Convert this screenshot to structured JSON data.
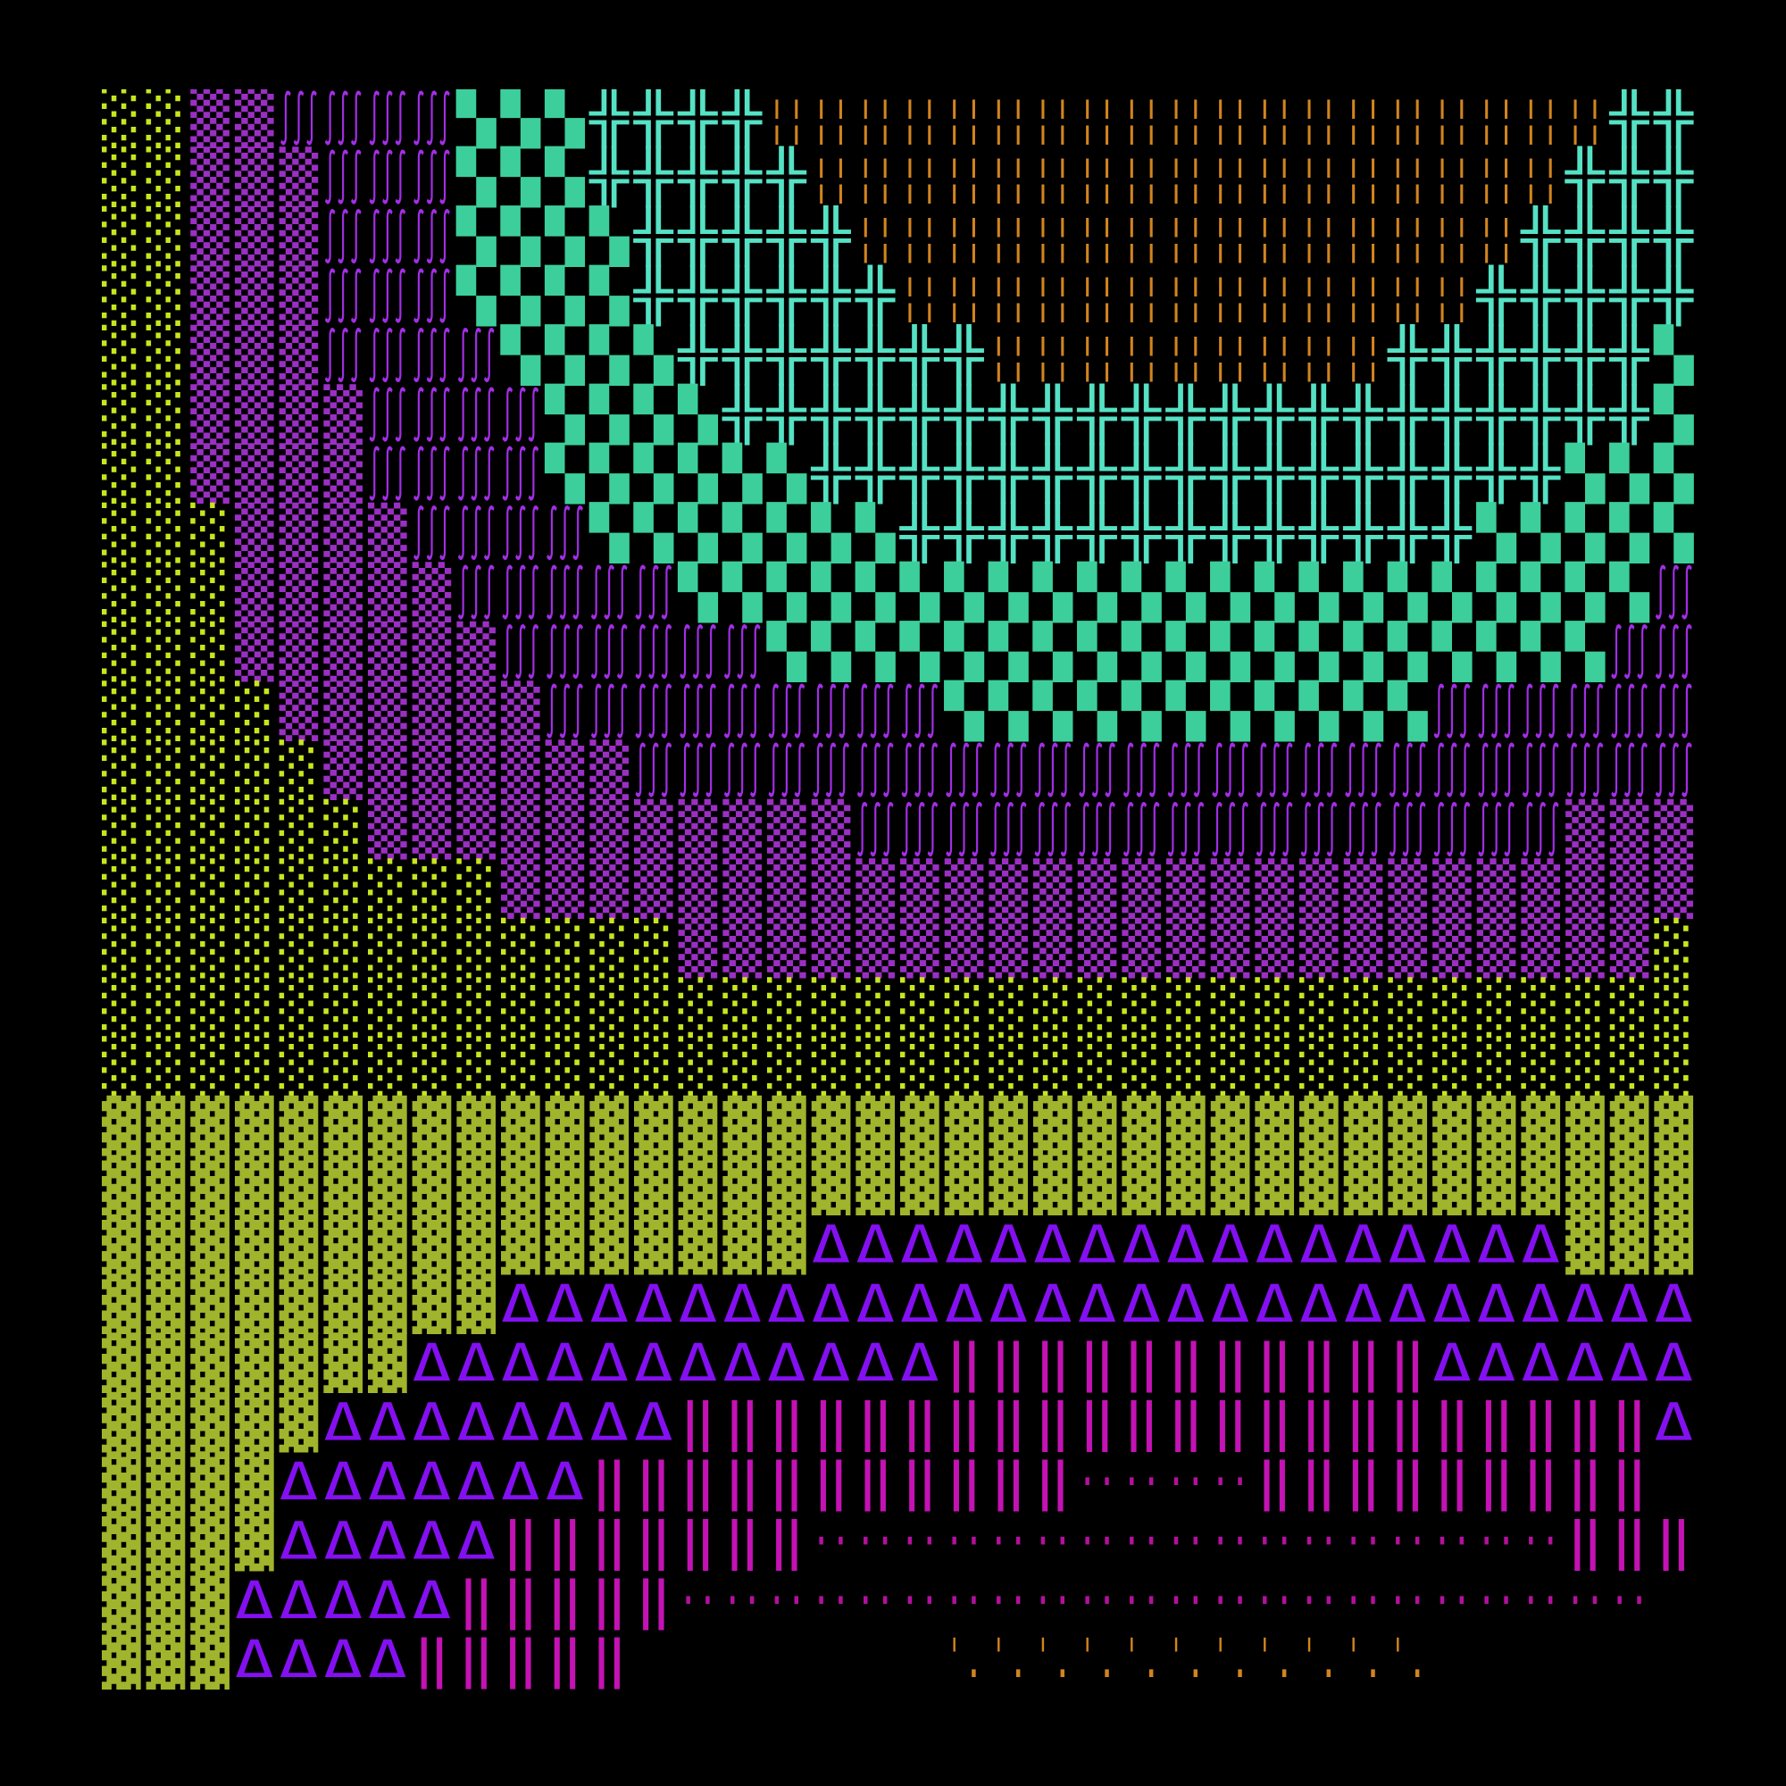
{
  "glyphs": [
    {
      "char": "░",
      "color": "#c8e61e"
    },
    {
      "char": "▒",
      "color": "#9b2fc4"
    },
    {
      "char": "∫∫∫",
      "color": "#a22ee6"
    },
    {
      "char": "▚",
      "color": "#3ccf9c"
    },
    {
      "char": "╬",
      "color": "#55e2c4"
    },
    {
      "char": "¦¦",
      "color": "#d2841e"
    },
    {
      "char": "▓",
      "color": "#a0b42c"
    },
    {
      "char": "Δ",
      "color": "#8410f2"
    },
    {
      "char": "‖",
      "color": "#c412b4"
    },
    {
      "char": "··",
      "color": "#b4109e"
    },
    {
      "char": "ˈ.",
      "color": "#d2841e"
    }
  ],
  "rows": [
    [
      [
        0,
        2
      ],
      [
        1,
        2
      ],
      [
        2,
        4
      ],
      [
        3,
        3
      ],
      [
        4,
        4
      ],
      [
        5,
        19
      ],
      [
        4,
        2
      ]
    ],
    [
      [
        0,
        2
      ],
      [
        1,
        3
      ],
      [
        2,
        3
      ],
      [
        3,
        3
      ],
      [
        4,
        5
      ],
      [
        5,
        17
      ],
      [
        4,
        3
      ]
    ],
    [
      [
        0,
        2
      ],
      [
        1,
        3
      ],
      [
        2,
        3
      ],
      [
        3,
        4
      ],
      [
        4,
        5
      ],
      [
        5,
        15
      ],
      [
        4,
        4
      ]
    ],
    [
      [
        0,
        2
      ],
      [
        1,
        3
      ],
      [
        2,
        3
      ],
      [
        3,
        4
      ],
      [
        4,
        6
      ],
      [
        5,
        13
      ],
      [
        4,
        5
      ]
    ],
    [
      [
        0,
        2
      ],
      [
        1,
        3
      ],
      [
        2,
        4
      ],
      [
        3,
        4
      ],
      [
        4,
        7
      ],
      [
        5,
        9
      ],
      [
        4,
        6
      ],
      [
        3,
        1
      ]
    ],
    [
      [
        0,
        2
      ],
      [
        1,
        4
      ],
      [
        2,
        4
      ],
      [
        3,
        4
      ],
      [
        4,
        21
      ],
      [
        3,
        1
      ]
    ],
    [
      [
        0,
        2
      ],
      [
        1,
        4
      ],
      [
        2,
        4
      ],
      [
        3,
        6
      ],
      [
        4,
        17
      ],
      [
        3,
        3
      ]
    ],
    [
      [
        0,
        3
      ],
      [
        1,
        4
      ],
      [
        2,
        4
      ],
      [
        3,
        7
      ],
      [
        4,
        13
      ],
      [
        3,
        5
      ]
    ],
    [
      [
        0,
        3
      ],
      [
        1,
        5
      ],
      [
        2,
        5
      ],
      [
        3,
        22
      ],
      [
        2,
        1
      ]
    ],
    [
      [
        0,
        3
      ],
      [
        1,
        6
      ],
      [
        2,
        6
      ],
      [
        3,
        19
      ],
      [
        2,
        2
      ]
    ],
    [
      [
        0,
        4
      ],
      [
        1,
        6
      ],
      [
        2,
        9
      ],
      [
        3,
        11
      ],
      [
        2,
        6
      ]
    ],
    [
      [
        0,
        5
      ],
      [
        1,
        7
      ],
      [
        2,
        24
      ]
    ],
    [
      [
        0,
        6
      ],
      [
        1,
        11
      ],
      [
        2,
        16
      ],
      [
        1,
        3
      ]
    ],
    [
      [
        0,
        9
      ],
      [
        1,
        27
      ]
    ],
    [
      [
        0,
        13
      ],
      [
        1,
        22
      ],
      [
        0,
        1
      ]
    ],
    [
      [
        0,
        36
      ]
    ],
    [
      [
        0,
        36
      ]
    ],
    [
      [
        6,
        36
      ]
    ],
    [
      [
        6,
        36
      ]
    ],
    [
      [
        6,
        16
      ],
      [
        7,
        17
      ],
      [
        6,
        3
      ]
    ],
    [
      [
        6,
        9
      ],
      [
        7,
        27
      ]
    ],
    [
      [
        6,
        7
      ],
      [
        7,
        12
      ],
      [
        8,
        11
      ],
      [
        7,
        6
      ]
    ],
    [
      [
        6,
        5
      ],
      [
        7,
        8
      ],
      [
        8,
        22
      ],
      [
        7,
        1
      ]
    ],
    [
      [
        6,
        4
      ],
      [
        7,
        7
      ],
      [
        8,
        11
      ],
      [
        9,
        4
      ],
      [
        8,
        9
      ],
      [
        null,
        1
      ]
    ],
    [
      [
        6,
        4
      ],
      [
        7,
        5
      ],
      [
        8,
        7
      ],
      [
        9,
        17
      ],
      [
        8,
        3
      ]
    ],
    [
      [
        6,
        3
      ],
      [
        7,
        5
      ],
      [
        8,
        5
      ],
      [
        9,
        22
      ],
      [
        null,
        1
      ]
    ],
    [
      [
        6,
        3
      ],
      [
        7,
        4
      ],
      [
        8,
        5
      ],
      [
        null,
        7
      ],
      [
        10,
        11
      ],
      [
        null,
        6
      ]
    ]
  ]
}
